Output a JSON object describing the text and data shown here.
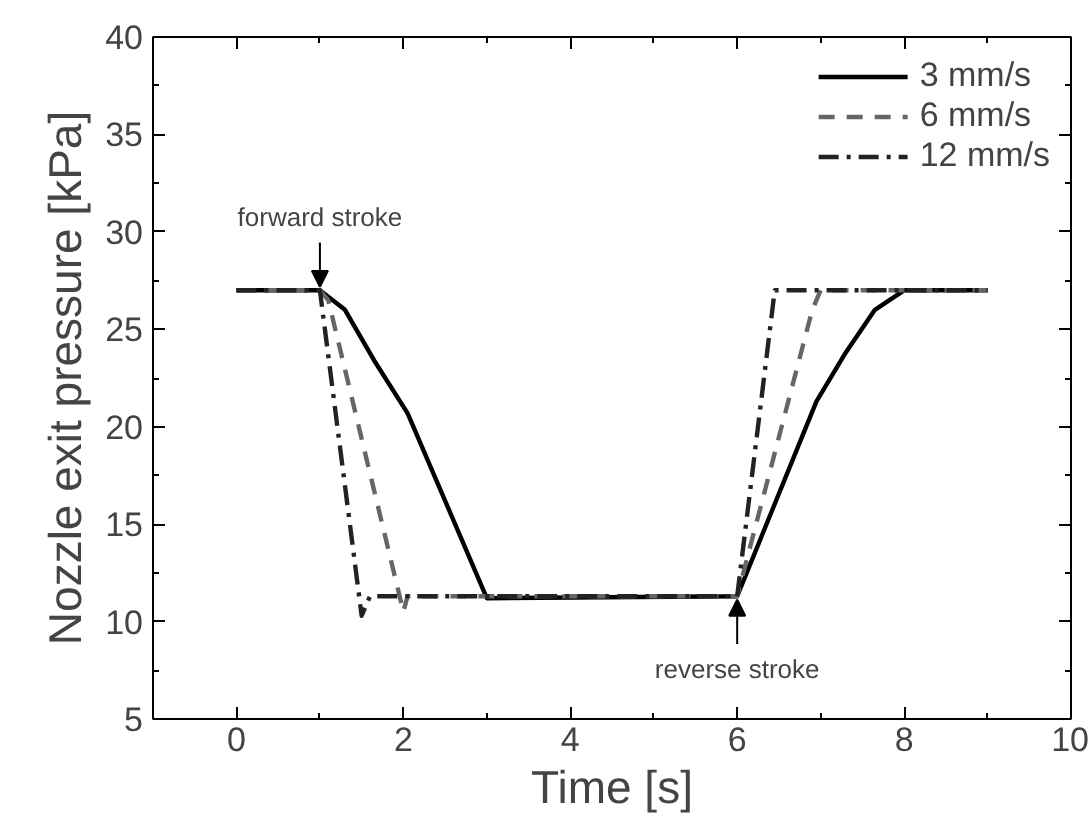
{
  "chart_data": {
    "type": "line",
    "xlabel": "Time [s]",
    "ylabel": "Nozzle exit pressure [kPa]",
    "xlim": [
      -1,
      10
    ],
    "xticks": [
      0,
      2,
      4,
      6,
      8,
      10
    ],
    "ylim": [
      5,
      40
    ],
    "yticks": [
      5,
      10,
      15,
      20,
      25,
      30,
      35,
      40
    ],
    "grid": false,
    "legend": "top right",
    "marker": "none",
    "series": [
      {
        "name": "3 mm/s",
        "color": "#000000",
        "line_style": "solid",
        "x": [
          0,
          1,
          1.3,
          1.65,
          2.05,
          3,
          6,
          6.95,
          7.3,
          7.65,
          8,
          9
        ],
        "values": [
          27,
          27,
          26,
          23.4,
          20.7,
          11.2,
          11.3,
          21.3,
          23.8,
          26,
          27,
          27
        ]
      },
      {
        "name": "6 mm/s",
        "color": "#666666",
        "line_style": "dashed",
        "x": [
          0,
          1,
          1.1,
          2,
          2.05,
          6,
          6.9,
          7,
          9
        ],
        "values": [
          27,
          27,
          26.5,
          10.5,
          11.3,
          11.3,
          26,
          27,
          27
        ]
      },
      {
        "name": "12 mm/s",
        "color": "#222222",
        "line_style": "dashdot",
        "x": [
          0,
          1,
          1.5,
          1.6,
          6,
          6.45,
          9
        ],
        "values": [
          27,
          27,
          10.3,
          11.3,
          11.3,
          27,
          27
        ]
      }
    ],
    "annotations": [
      {
        "text": "forward stroke",
        "x": 1,
        "y": 27
      },
      {
        "text": "reverse stroke",
        "x": 6,
        "y": 11.3
      }
    ]
  }
}
